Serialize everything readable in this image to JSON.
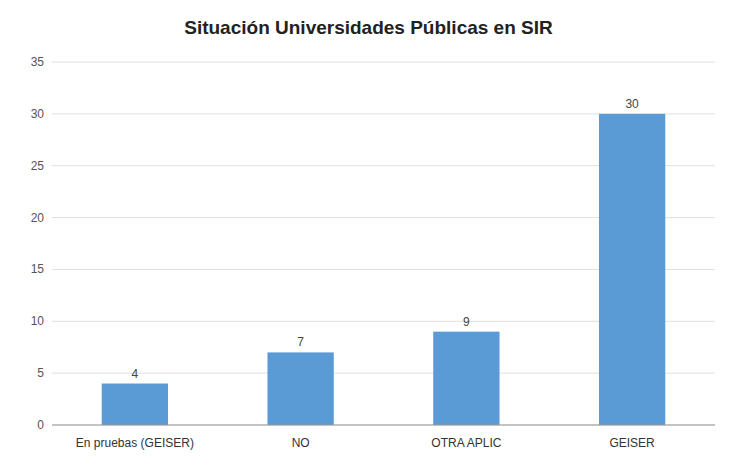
{
  "chart_data": {
    "type": "bar",
    "title": "Situación Universidades Públicas en SIR",
    "categories": [
      "En pruebas (GEISER)",
      "NO",
      "OTRA APLIC",
      "GEISER"
    ],
    "values": [
      4,
      7,
      9,
      30
    ],
    "color": "#5B9BD5",
    "ylim": [
      0,
      35
    ],
    "yticks": [
      0,
      5,
      10,
      15,
      20,
      25,
      30,
      35
    ],
    "grid": true,
    "data_labels": true
  }
}
